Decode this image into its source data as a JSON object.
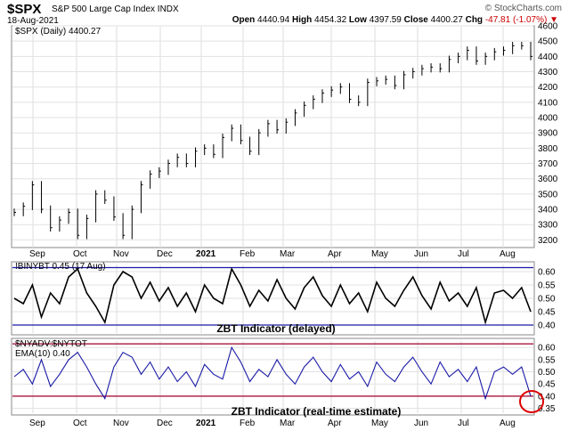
{
  "header": {
    "symbol": "$SPX",
    "name": "S&P 500 Large Cap Index",
    "exchange": "INDX",
    "date": "18-Aug-2021",
    "brand": "© StockCharts.com",
    "open_label": "Open",
    "open": "4440.94",
    "high_label": "High",
    "high": "4454.32",
    "low_label": "Low",
    "low": "4397.59",
    "close_label": "Close",
    "close": "4400.27",
    "chg_label": "Chg",
    "chg": "-47.81 (-1.07%)",
    "chg_arrow": "▼"
  },
  "panels": {
    "price_legend": "$SPX (Daily) 4400.27",
    "ind1_legend": "!BINYBT 0.45 (17 Aug)",
    "ind1_title": "ZBT Indicator (delayed)",
    "ind2_legend1": "$NYADV:$NYTOT",
    "ind2_legend2": "EMA(10) 0.40",
    "ind2_title": "ZBT Indicator (real-time estimate)"
  },
  "chart_data": [
    {
      "type": "line",
      "title": "$SPX (Daily) 4400.27",
      "ylim": [
        3150,
        4600
      ],
      "yticks": [
        3200,
        3300,
        3400,
        3500,
        3600,
        3700,
        3800,
        3900,
        4000,
        4100,
        4200,
        4300,
        4400,
        4500,
        4600
      ],
      "xlabels": [
        "Sep",
        "Oct",
        "Nov",
        "Dec",
        "2021",
        "Feb",
        "Mar",
        "Apr",
        "May",
        "Jun",
        "Jul",
        "Aug"
      ],
      "series": [
        {
          "values": [
            3380,
            3420,
            3560,
            3400,
            3280,
            3330,
            3380,
            3230,
            3340,
            3500,
            3460,
            3350,
            3230,
            3400,
            3560,
            3630,
            3650,
            3700,
            3740,
            3700,
            3780,
            3800,
            3760,
            3870,
            3930,
            3850,
            3780,
            3900,
            3960,
            3920,
            3970,
            4030,
            4080,
            4120,
            4160,
            4180,
            4200,
            4120,
            4100,
            4230,
            4240,
            4250,
            4210,
            4280,
            4300,
            4320,
            4330,
            4320,
            4380,
            4400,
            4440,
            4370,
            4400,
            4430,
            4440,
            4470,
            4470,
            4400
          ]
        }
      ]
    },
    {
      "type": "line",
      "title": "ZBT Indicator (delayed)",
      "ylim": [
        0.37,
        0.63
      ],
      "yticks": [
        0.4,
        0.45,
        0.5,
        0.55,
        0.6
      ],
      "reference_lines": [
        0.4,
        0.615
      ],
      "series": [
        {
          "name": "!BINYBT",
          "values": [
            0.5,
            0.48,
            0.55,
            0.43,
            0.52,
            0.48,
            0.58,
            0.61,
            0.52,
            0.47,
            0.41,
            0.55,
            0.6,
            0.58,
            0.5,
            0.56,
            0.49,
            0.54,
            0.47,
            0.52,
            0.45,
            0.55,
            0.5,
            0.48,
            0.61,
            0.55,
            0.47,
            0.53,
            0.49,
            0.57,
            0.5,
            0.46,
            0.54,
            0.58,
            0.51,
            0.47,
            0.55,
            0.48,
            0.52,
            0.45,
            0.56,
            0.5,
            0.47,
            0.53,
            0.58,
            0.51,
            0.46,
            0.56,
            0.49,
            0.52,
            0.47,
            0.54,
            0.41,
            0.52,
            0.53,
            0.5,
            0.54,
            0.45
          ]
        }
      ]
    },
    {
      "type": "line",
      "title": "ZBT Indicator (real-time estimate)",
      "ylim": [
        0.33,
        0.63
      ],
      "yticks": [
        0.35,
        0.4,
        0.45,
        0.5,
        0.55,
        0.6
      ],
      "reference_lines": [
        0.4,
        0.615
      ],
      "series": [
        {
          "name": "$NYADV:$NYTOT EMA(10)",
          "values": [
            0.48,
            0.51,
            0.45,
            0.55,
            0.44,
            0.49,
            0.55,
            0.58,
            0.52,
            0.45,
            0.39,
            0.52,
            0.58,
            0.56,
            0.49,
            0.54,
            0.47,
            0.52,
            0.46,
            0.5,
            0.44,
            0.53,
            0.49,
            0.47,
            0.6,
            0.54,
            0.46,
            0.51,
            0.48,
            0.55,
            0.49,
            0.45,
            0.52,
            0.56,
            0.5,
            0.46,
            0.53,
            0.47,
            0.5,
            0.44,
            0.54,
            0.49,
            0.46,
            0.52,
            0.56,
            0.5,
            0.45,
            0.54,
            0.48,
            0.51,
            0.46,
            0.52,
            0.39,
            0.5,
            0.52,
            0.49,
            0.52,
            0.4
          ]
        }
      ]
    }
  ]
}
